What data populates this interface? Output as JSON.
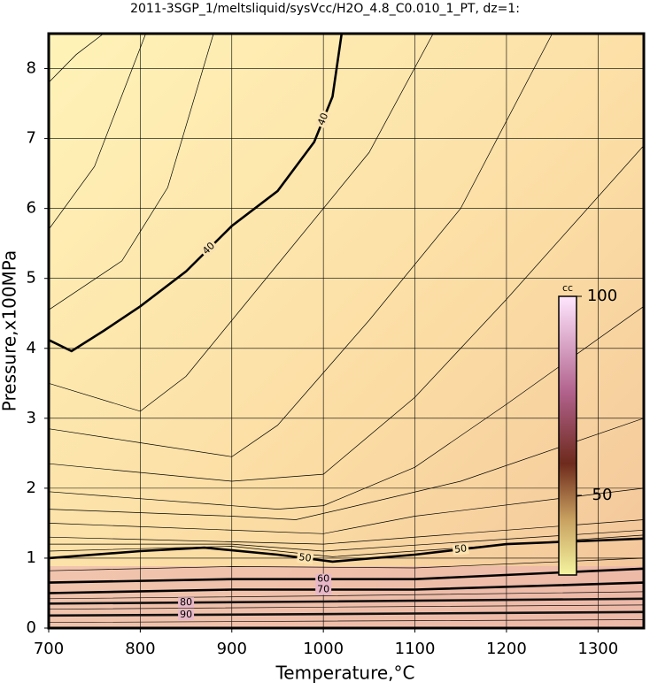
{
  "chart_data": {
    "type": "contour",
    "title": "2011-3SGP_1/meltsliquid/sysVcc/H2O_4.8_C0.010_1_PT, dz=1:",
    "x_label": "Temperature,°C",
    "y_label": "Pressure,x100MPa",
    "xlim": [
      700,
      1350
    ],
    "xticks": [
      700,
      800,
      900,
      1000,
      1100,
      1200,
      1300
    ],
    "ylim": [
      0,
      8.5
    ],
    "yticks": [
      0,
      1,
      2,
      3,
      4,
      5,
      6,
      7,
      8
    ],
    "grid": true,
    "contours": [
      {
        "level": 37,
        "x": [
          700,
          730,
          760
        ],
        "y": [
          7.8,
          8.2,
          8.5
        ]
      },
      {
        "level": 38,
        "x": [
          700,
          750,
          806
        ],
        "y": [
          5.7,
          6.6,
          8.5
        ]
      },
      {
        "level": 39,
        "x": [
          700,
          780,
          830,
          880
        ],
        "y": [
          4.55,
          5.25,
          6.3,
          8.5
        ]
      },
      {
        "level": 40,
        "x": [
          700,
          725,
          760,
          800,
          850,
          900,
          950,
          990,
          1010,
          1020
        ],
        "y": [
          4.12,
          3.96,
          4.25,
          4.6,
          5.1,
          5.75,
          6.25,
          6.95,
          7.6,
          8.5
        ]
      },
      {
        "level": 41,
        "x": [
          700,
          800,
          850,
          950,
          1050,
          1120
        ],
        "y": [
          3.5,
          3.1,
          3.6,
          5.2,
          6.8,
          8.5
        ]
      },
      {
        "level": 42,
        "x": [
          700,
          800,
          900,
          950,
          1050,
          1150,
          1250
        ],
        "y": [
          2.85,
          2.65,
          2.45,
          2.9,
          4.4,
          6.0,
          8.5
        ]
      },
      {
        "level": 43,
        "x": [
          700,
          900,
          1000,
          1100,
          1200,
          1350
        ],
        "y": [
          2.35,
          2.1,
          2.2,
          3.3,
          4.7,
          6.9
        ]
      },
      {
        "level": 44,
        "x": [
          700,
          950,
          1000,
          1100,
          1200,
          1350
        ],
        "y": [
          1.95,
          1.7,
          1.75,
          2.3,
          3.2,
          4.6
        ]
      },
      {
        "level": 45,
        "x": [
          700,
          900,
          970,
          1020,
          1150,
          1350
        ],
        "y": [
          1.7,
          1.6,
          1.55,
          1.7,
          2.1,
          3.0
        ]
      },
      {
        "level": 46,
        "x": [
          700,
          1000,
          1100,
          1350
        ],
        "y": [
          1.5,
          1.35,
          1.6,
          2.0
        ]
      },
      {
        "level": 47,
        "x": [
          700,
          1000,
          1350
        ],
        "y": [
          1.3,
          1.2,
          1.55
        ]
      },
      {
        "level": 48,
        "x": [
          700,
          900,
          1000,
          1350
        ],
        "y": [
          1.2,
          1.2,
          1.1,
          1.4
        ]
      },
      {
        "level": 49,
        "x": [
          700,
          900,
          1010,
          1350
        ],
        "y": [
          1.1,
          1.17,
          1.02,
          1.33
        ]
      },
      {
        "level": 50,
        "x": [
          700,
          800,
          870,
          950,
          1010,
          1100,
          1200,
          1350
        ],
        "y": [
          1.0,
          1.1,
          1.15,
          1.05,
          0.95,
          1.05,
          1.2,
          1.28
        ]
      },
      {
        "level": 55,
        "x": [
          700,
          900,
          1100,
          1350
        ],
        "y": [
          0.82,
          0.88,
          0.86,
          1.0
        ]
      },
      {
        "level": 60,
        "x": [
          700,
          900,
          1100,
          1350
        ],
        "y": [
          0.65,
          0.7,
          0.7,
          0.85
        ]
      },
      {
        "level": 70,
        "x": [
          700,
          900,
          1100,
          1350
        ],
        "y": [
          0.5,
          0.55,
          0.55,
          0.65
        ]
      },
      {
        "level": 75,
        "x": [
          700,
          1000,
          1350
        ],
        "y": [
          0.42,
          0.46,
          0.52
        ]
      },
      {
        "level": 80,
        "x": [
          700,
          1000,
          1350
        ],
        "y": [
          0.35,
          0.38,
          0.42
        ]
      },
      {
        "level": 85,
        "x": [
          700,
          1000,
          1350
        ],
        "y": [
          0.27,
          0.3,
          0.33
        ]
      },
      {
        "level": 90,
        "x": [
          700,
          1000,
          1350
        ],
        "y": [
          0.18,
          0.2,
          0.23
        ]
      },
      {
        "level": 95,
        "x": [
          700,
          1000,
          1350
        ],
        "y": [
          0.08,
          0.1,
          0.12
        ]
      }
    ],
    "colorbar": {
      "label": "cc",
      "lim": [
        30,
        100
      ],
      "ticks": [
        50,
        100
      ]
    }
  }
}
